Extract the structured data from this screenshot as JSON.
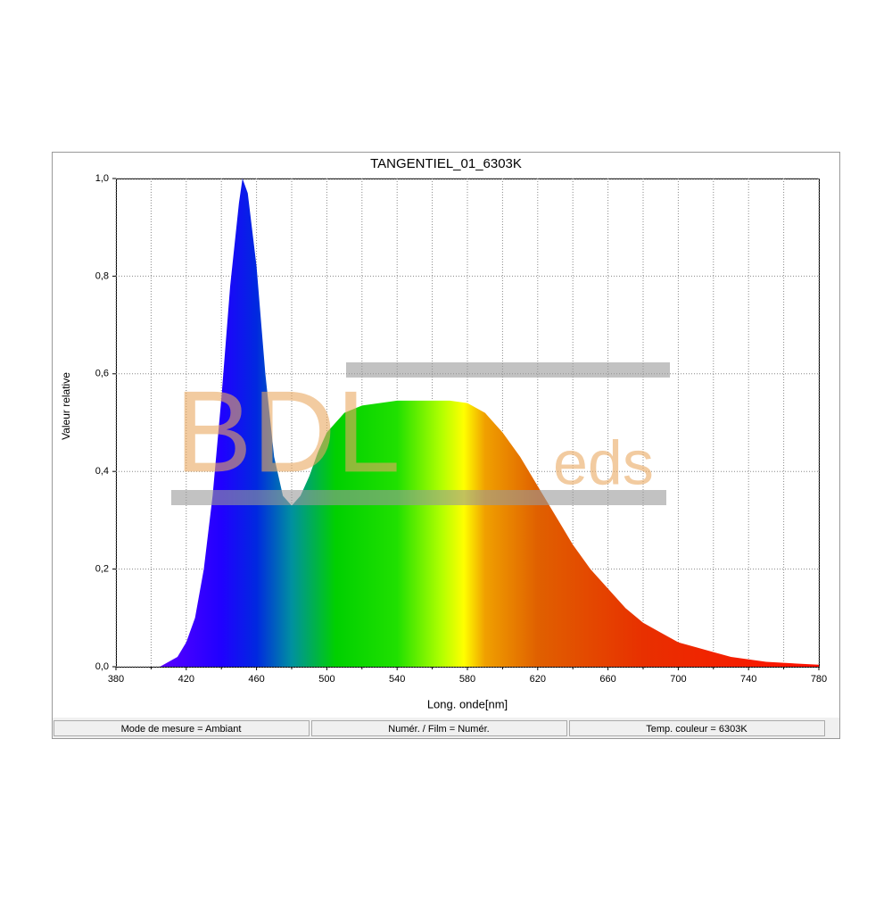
{
  "chart_data": {
    "type": "area",
    "title": "TANGENTIEL_01_6303K",
    "xlabel": "Long. onde[nm]",
    "ylabel": "Valeur relative",
    "watermark": [
      "BDL",
      "eds"
    ],
    "footer": [
      "Mode de mesure = Ambiant",
      "Numér. / Film = Numér.",
      "Temp. couleur = 6303K"
    ],
    "x": [
      380,
      390,
      400,
      405,
      410,
      415,
      420,
      425,
      430,
      435,
      440,
      445,
      450,
      452,
      455,
      460,
      465,
      470,
      475,
      480,
      485,
      490,
      495,
      500,
      505,
      510,
      520,
      530,
      540,
      550,
      560,
      570,
      580,
      590,
      600,
      610,
      620,
      630,
      640,
      650,
      660,
      670,
      680,
      690,
      700,
      710,
      720,
      730,
      740,
      750,
      760,
      770,
      780
    ],
    "values": [
      0,
      0,
      0,
      0,
      0.01,
      0.02,
      0.05,
      0.1,
      0.2,
      0.35,
      0.55,
      0.78,
      0.95,
      1.0,
      0.97,
      0.82,
      0.6,
      0.43,
      0.35,
      0.33,
      0.35,
      0.39,
      0.44,
      0.48,
      0.5,
      0.52,
      0.535,
      0.54,
      0.545,
      0.545,
      0.545,
      0.545,
      0.54,
      0.52,
      0.48,
      0.43,
      0.37,
      0.31,
      0.25,
      0.2,
      0.16,
      0.12,
      0.09,
      0.07,
      0.05,
      0.04,
      0.03,
      0.02,
      0.015,
      0.01,
      0.008,
      0.006,
      0.004
    ],
    "fill_stops": [
      {
        "at": 405,
        "color": "#5a00ff"
      },
      {
        "at": 440,
        "color": "#2000ff"
      },
      {
        "at": 460,
        "color": "#0028e0"
      },
      {
        "at": 480,
        "color": "#0090a0"
      },
      {
        "at": 505,
        "color": "#00d000"
      },
      {
        "at": 540,
        "color": "#20e000"
      },
      {
        "at": 565,
        "color": "#b0ff00"
      },
      {
        "at": 578,
        "color": "#ffff00"
      },
      {
        "at": 590,
        "color": "#f0a000"
      },
      {
        "at": 620,
        "color": "#e06000"
      },
      {
        "at": 680,
        "color": "#e83000"
      },
      {
        "at": 780,
        "color": "#ff1000"
      }
    ],
    "xlim": [
      380,
      780
    ],
    "ylim": [
      0,
      1
    ],
    "xticks": [
      380,
      420,
      460,
      500,
      540,
      580,
      620,
      660,
      700,
      740,
      780
    ],
    "xminorticks": [
      400,
      440,
      480,
      520,
      560,
      600,
      640,
      680,
      720,
      760
    ],
    "yticks": [
      {
        "value": 0,
        "label": "0,0"
      },
      {
        "value": 0.2,
        "label": "0,2"
      },
      {
        "value": 0.4,
        "label": "0,4"
      },
      {
        "value": 0.6,
        "label": "0,6"
      },
      {
        "value": 0.8,
        "label": "0,8"
      },
      {
        "value": 1,
        "label": "1,0"
      }
    ],
    "grid": true
  }
}
